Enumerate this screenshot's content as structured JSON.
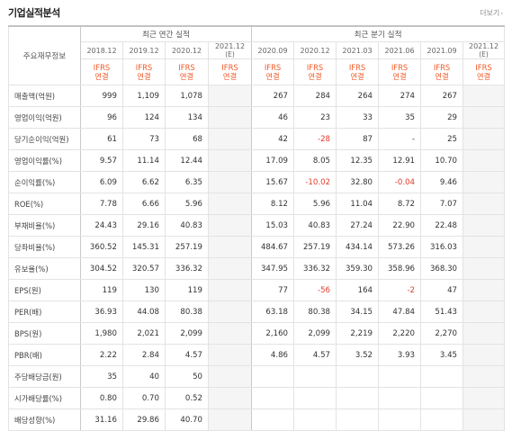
{
  "header": {
    "title": "기업실적분석",
    "more_label": "더보기"
  },
  "table": {
    "corner_label": "주요재무정보",
    "annual_group": "최근 연간 실적",
    "quarter_group": "최근 분기 실적",
    "periods": [
      {
        "label": "2018.12",
        "sub": "",
        "est": false
      },
      {
        "label": "2019.12",
        "sub": "",
        "est": false
      },
      {
        "label": "2020.12",
        "sub": "",
        "est": false
      },
      {
        "label": "2021.12",
        "sub": "(E)",
        "est": true
      },
      {
        "label": "2020.09",
        "sub": "",
        "est": false
      },
      {
        "label": "2020.12",
        "sub": "",
        "est": false
      },
      {
        "label": "2021.03",
        "sub": "",
        "est": false
      },
      {
        "label": "2021.06",
        "sub": "",
        "est": false
      },
      {
        "label": "2021.09",
        "sub": "",
        "est": false
      },
      {
        "label": "2021.12",
        "sub": "(E)",
        "est": true
      }
    ],
    "basis_top": "IFRS",
    "basis_bottom": "연결",
    "rows": [
      {
        "label": "매출액(억원)",
        "group": 1,
        "values": [
          "999",
          "1,109",
          "1,078",
          "",
          "267",
          "284",
          "264",
          "274",
          "267",
          ""
        ]
      },
      {
        "label": "영업이익(억원)",
        "group": 1,
        "values": [
          "96",
          "124",
          "134",
          "",
          "46",
          "23",
          "33",
          "35",
          "29",
          ""
        ]
      },
      {
        "label": "당기순이익(억원)",
        "group": 1,
        "values": [
          "61",
          "73",
          "68",
          "",
          "42",
          "-28",
          "87",
          "-",
          "25",
          ""
        ]
      },
      {
        "label": "영업이익률(%)",
        "group": 2,
        "values": [
          "9.57",
          "11.14",
          "12.44",
          "",
          "17.09",
          "8.05",
          "12.35",
          "12.91",
          "10.70",
          ""
        ]
      },
      {
        "label": "순이익률(%)",
        "group": 2,
        "values": [
          "6.09",
          "6.62",
          "6.35",
          "",
          "15.67",
          "-10.02",
          "32.80",
          "-0.04",
          "9.46",
          ""
        ]
      },
      {
        "label": "ROE(%)",
        "group": 2,
        "values": [
          "7.78",
          "6.66",
          "5.96",
          "",
          "8.12",
          "5.96",
          "11.04",
          "8.72",
          "7.07",
          ""
        ]
      },
      {
        "label": "부채비율(%)",
        "group": 3,
        "values": [
          "24.43",
          "29.16",
          "40.83",
          "",
          "15.03",
          "40.83",
          "27.24",
          "22.90",
          "22.48",
          ""
        ]
      },
      {
        "label": "당좌비율(%)",
        "group": 3,
        "values": [
          "360.52",
          "145.31",
          "257.19",
          "",
          "484.67",
          "257.19",
          "434.14",
          "573.26",
          "316.03",
          ""
        ]
      },
      {
        "label": "유보율(%)",
        "group": 3,
        "values": [
          "304.52",
          "320.57",
          "336.32",
          "",
          "347.95",
          "336.32",
          "359.30",
          "358.96",
          "368.30",
          ""
        ]
      },
      {
        "label": "EPS(원)",
        "group": 4,
        "values": [
          "119",
          "130",
          "119",
          "",
          "77",
          "-56",
          "164",
          "-2",
          "47",
          ""
        ]
      },
      {
        "label": "PER(배)",
        "group": 4,
        "values": [
          "36.93",
          "44.08",
          "80.38",
          "",
          "63.18",
          "80.38",
          "34.15",
          "47.84",
          "51.43",
          ""
        ]
      },
      {
        "label": "BPS(원)",
        "group": 4,
        "values": [
          "1,980",
          "2,021",
          "2,099",
          "",
          "2,160",
          "2,099",
          "2,219",
          "2,220",
          "2,270",
          ""
        ]
      },
      {
        "label": "PBR(배)",
        "group": 4,
        "values": [
          "2.22",
          "2.84",
          "4.57",
          "",
          "4.86",
          "4.57",
          "3.52",
          "3.93",
          "3.45",
          ""
        ]
      },
      {
        "label": "주당배당금(원)",
        "group": 5,
        "values": [
          "35",
          "40",
          "50",
          "",
          "",
          "",
          "",
          "",
          "",
          ""
        ]
      },
      {
        "label": "시가배당률(%)",
        "group": 5,
        "values": [
          "0.80",
          "0.70",
          "0.52",
          "",
          "",
          "",
          "",
          "",
          "",
          ""
        ]
      },
      {
        "label": "배당성향(%)",
        "group": 5,
        "values": [
          "31.16",
          "29.86",
          "40.70",
          "",
          "",
          "",
          "",
          "",
          "",
          ""
        ]
      }
    ]
  }
}
